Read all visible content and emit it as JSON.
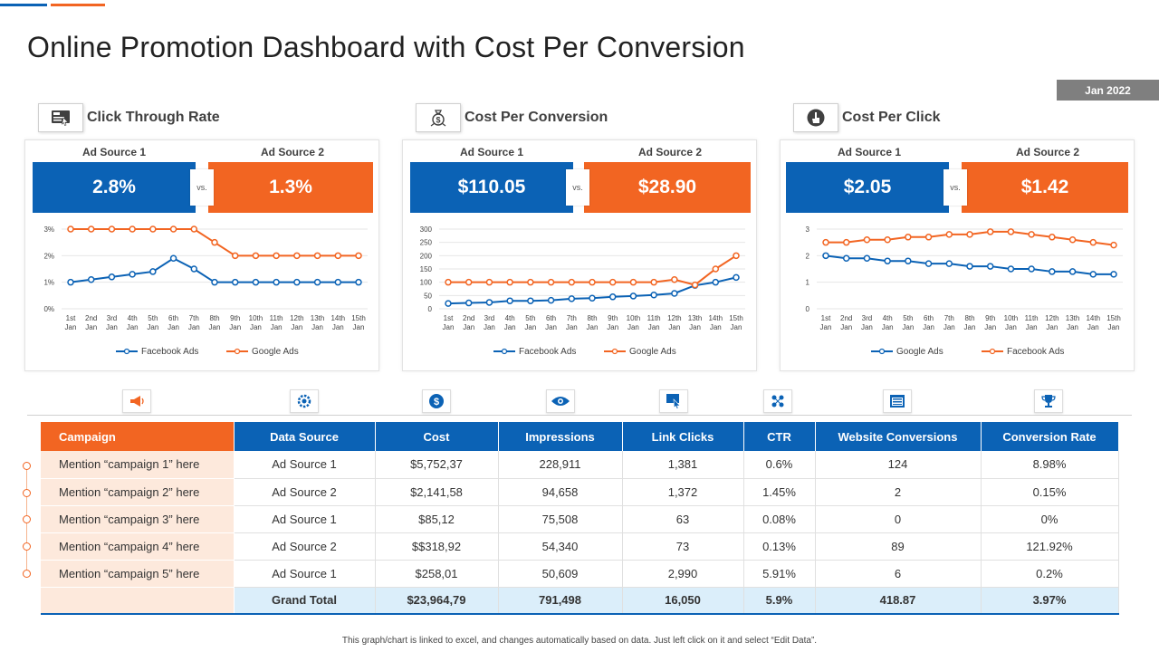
{
  "header": {
    "title": "Online Promotion Dashboard with Cost Per Conversion",
    "date": "Jan 2022",
    "accent_colors": [
      "#0b62b5",
      "#f26522"
    ]
  },
  "colors": {
    "blue": "#0b62b5",
    "orange": "#f26522"
  },
  "panels": [
    {
      "title": "Click  Through Rate",
      "icon": "dashboard-screen-icon",
      "source1_label": "Ad Source 1",
      "source2_label": "Ad Source 2",
      "source1_value": "2.8%",
      "source2_value": "1.3%",
      "vs_label": "vs."
    },
    {
      "title": "Cost Per Conversion",
      "icon": "money-bag-icon",
      "source1_label": "Ad Source 1",
      "source2_label": "Ad Source 2",
      "source1_value": "$110.05",
      "source2_value": "$28.90",
      "vs_label": "vs."
    },
    {
      "title": "Cost Per Click",
      "icon": "hand-click-icon",
      "source1_label": "Ad Source 1",
      "source2_label": "Ad Source 2",
      "source1_value": "$2.05",
      "source2_value": "$1.42",
      "vs_label": "vs."
    }
  ],
  "chart_data": [
    {
      "type": "line",
      "categories": [
        "1st Jan",
        "2nd Jan",
        "3rd Jan",
        "4th Jan",
        "5th Jan",
        "6th Jan",
        "7th Jan",
        "8th Jan",
        "9th Jan",
        "10th Jan",
        "11th Jan",
        "12th Jan",
        "13th Jan",
        "14th Jan",
        "15th Jan"
      ],
      "yticks": [
        "0%",
        "1%",
        "2%",
        "3%"
      ],
      "ylim": [
        0,
        3
      ],
      "legend_order": [
        "Facebook Ads",
        "Google Ads"
      ],
      "series": [
        {
          "name": "Facebook Ads",
          "color": "#0b62b5",
          "values": [
            1.0,
            1.1,
            1.2,
            1.3,
            1.4,
            1.9,
            1.5,
            1.0,
            1.0,
            1.0,
            1.0,
            1.0,
            1.0,
            1.0,
            1.0
          ]
        },
        {
          "name": "Google Ads",
          "color": "#f26522",
          "values": [
            3.0,
            3.0,
            3.0,
            3.0,
            3.0,
            3.0,
            3.0,
            2.5,
            2.0,
            2.0,
            2.0,
            2.0,
            2.0,
            2.0,
            2.0
          ]
        }
      ],
      "title": "",
      "xlabel": "",
      "ylabel": "",
      "legend": "bottom",
      "grid": true
    },
    {
      "type": "line",
      "categories": [
        "1st Jan",
        "2nd Jan",
        "3rd Jan",
        "4th Jan",
        "5th Jan",
        "6th Jan",
        "7th Jan",
        "8th Jan",
        "9th Jan",
        "10th Jan",
        "11th Jan",
        "12th Jan",
        "13th Jan",
        "14th Jan",
        "15th Jan"
      ],
      "yticks": [
        "0",
        "50",
        "100",
        "150",
        "200",
        "250",
        "300"
      ],
      "ylim": [
        0,
        300
      ],
      "legend_order": [
        "Facebook Ads",
        "Google Ads"
      ],
      "series": [
        {
          "name": "Facebook Ads",
          "color": "#0b62b5",
          "values": [
            20,
            22,
            24,
            30,
            30,
            32,
            38,
            40,
            45,
            48,
            52,
            58,
            88,
            100,
            118
          ]
        },
        {
          "name": "Google Ads",
          "color": "#f26522",
          "values": [
            100,
            100,
            100,
            100,
            100,
            100,
            100,
            100,
            100,
            100,
            100,
            110,
            90,
            150,
            200
          ]
        }
      ],
      "title": "",
      "xlabel": "",
      "ylabel": "",
      "legend": "bottom",
      "grid": true
    },
    {
      "type": "line",
      "categories": [
        "1st Jan",
        "2nd Jan",
        "3rd Jan",
        "4th Jan",
        "5th Jan",
        "6th Jan",
        "7th Jan",
        "8th Jan",
        "9th Jan",
        "10th Jan",
        "11th Jan",
        "12th Jan",
        "13th Jan",
        "14th Jan",
        "15th Jan"
      ],
      "yticks": [
        "0",
        "1",
        "2",
        "3"
      ],
      "ylim": [
        0,
        3
      ],
      "legend_order": [
        "Google Ads",
        "Facebook Ads"
      ],
      "series": [
        {
          "name": "Facebook Ads",
          "color": "#f26522",
          "values": [
            2.5,
            2.5,
            2.6,
            2.6,
            2.7,
            2.7,
            2.8,
            2.8,
            2.9,
            2.9,
            2.8,
            2.7,
            2.6,
            2.5,
            2.4
          ]
        },
        {
          "name": "Google Ads",
          "color": "#0b62b5",
          "values": [
            2.0,
            1.9,
            1.9,
            1.8,
            1.8,
            1.7,
            1.7,
            1.6,
            1.6,
            1.5,
            1.5,
            1.4,
            1.4,
            1.3,
            1.3
          ]
        }
      ],
      "title": "",
      "xlabel": "",
      "ylabel": "",
      "legend": "bottom",
      "grid": true
    }
  ],
  "column_icons": [
    "megaphone-icon",
    "gear-chart-icon",
    "dollar-coin-icon",
    "eye-icon",
    "cursor-click-icon",
    "network-icon",
    "browser-window-icon",
    "trophy-icon"
  ],
  "table": {
    "headers": [
      "Campaign",
      "Data Source",
      "Cost",
      "Impressions",
      "Link Clicks",
      "CTR",
      "Website Conversions",
      "Conversion Rate"
    ],
    "rows": [
      [
        "Mention “campaign 1” here",
        "Ad Source 1",
        "$5,752,37",
        "228,911",
        "1,381",
        "0.6%",
        "124",
        "8.98%"
      ],
      [
        "Mention “campaign 2” here",
        "Ad Source 2",
        "$2,141,58",
        "94,658",
        "1,372",
        "1.45%",
        "2",
        "0.15%"
      ],
      [
        "Mention “campaign 3” here",
        "Ad Source 1",
        "$85,12",
        "75,508",
        "63",
        "0.08%",
        "0",
        "0%"
      ],
      [
        "Mention “campaign 4” here",
        "Ad Source 2",
        "$$318,92",
        "54,340",
        "73",
        "0.13%",
        "89",
        "121.92%"
      ],
      [
        "Mention “campaign 5” here",
        "Ad Source 1",
        "$258,01",
        "50,609",
        "2,990",
        "5.91%",
        "6",
        "0.2%"
      ]
    ],
    "total": [
      "",
      "Grand Total",
      "$23,964,79",
      "791,498",
      "16,050",
      "5.9%",
      "418.87",
      "3.97%"
    ]
  },
  "footnote": "This graph/chart is linked to excel, and changes automatically based on data. Just left click on it and select “Edit Data”."
}
